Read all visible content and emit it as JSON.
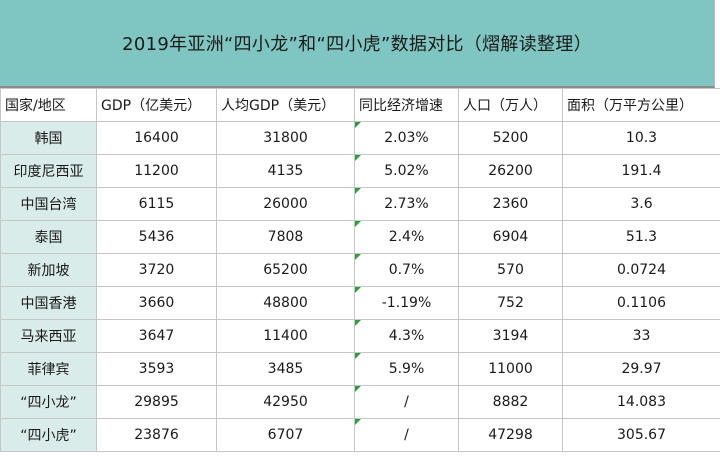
{
  "title": "2019年亚洲“四小龙”和“四小虎”数据对比（熠解读整理）",
  "colors": {
    "title_band": "#7fc6c2",
    "region_cell": "#d9ecea",
    "grid_line": "#c6c6c6",
    "comment_marker": "#2e9e3e"
  },
  "headers": [
    "国家/地区",
    "GDP（亿美元）",
    "人均GDP（美元）",
    "同比经济增速",
    "人口（万人）",
    "面积（万平方公里）"
  ],
  "rows": [
    [
      "韩国",
      "16400",
      "31800",
      "2.03%",
      "5200",
      "10.3"
    ],
    [
      "印度尼西亚",
      "11200",
      "4135",
      "5.02%",
      "26200",
      "191.4"
    ],
    [
      "中国台湾",
      "6115",
      "26000",
      "2.73%",
      "2360",
      "3.6"
    ],
    [
      "泰国",
      "5436",
      "7808",
      "2.4%",
      "6904",
      "51.3"
    ],
    [
      "新加坡",
      "3720",
      "65200",
      "0.7%",
      "570",
      "0.0724"
    ],
    [
      "中国香港",
      "3660",
      "48800",
      "-1.19%",
      "752",
      "0.1106"
    ],
    [
      "马来西亚",
      "3647",
      "11400",
      "4.3%",
      "3194",
      "33"
    ],
    [
      "菲律宾",
      "3593",
      "3485",
      "5.9%",
      "11000",
      "29.97"
    ],
    [
      "“四小龙”",
      "29895",
      "42950",
      "/",
      "8882",
      "14.083"
    ],
    [
      "“四小虎”",
      "23876",
      "6707",
      "/",
      "47298",
      "305.67"
    ]
  ]
}
